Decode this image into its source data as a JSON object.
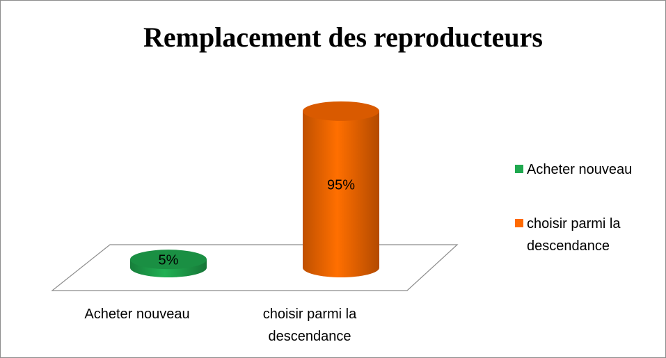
{
  "chart_data": {
    "type": "bar3d-cylinder",
    "title": "Remplacement des reproducteurs",
    "categories": [
      "Acheter nouveau",
      "choisir parmi la descendance"
    ],
    "values": [
      5,
      95
    ],
    "value_labels": [
      "5%",
      "95%"
    ],
    "colors": [
      "#1fa84f",
      "#ff6a00"
    ],
    "legend": "right"
  }
}
